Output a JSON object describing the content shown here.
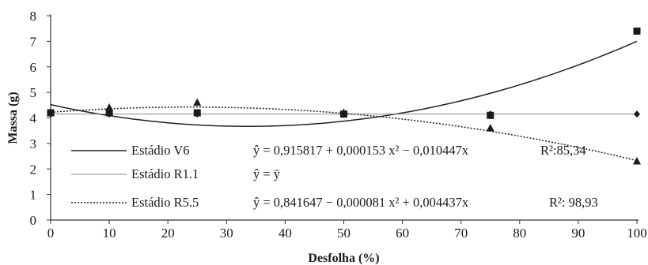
{
  "chart_data": {
    "type": "line",
    "xlabel": "Desfolha (%)",
    "ylabel": "Massa (g)",
    "xlim": [
      0,
      100
    ],
    "ylim": [
      0,
      8
    ],
    "xticks": [
      "0",
      "10",
      "20",
      "30",
      "40",
      "50",
      "60",
      "70",
      "80",
      "90",
      "100"
    ],
    "yticks": [
      "0",
      "1",
      "2",
      "3",
      "4",
      "5",
      "6",
      "7",
      "8"
    ],
    "grid": false,
    "legend_position": "lower-left",
    "series": [
      {
        "name": "Estádio V6",
        "marker": "square",
        "line_style": "solid",
        "points": [
          {
            "x": 0,
            "y": 4.2
          },
          {
            "x": 10,
            "y": 4.2
          },
          {
            "x": 25,
            "y": 4.2
          },
          {
            "x": 50,
            "y": 4.15
          },
          {
            "x": 75,
            "y": 4.1
          },
          {
            "x": 100,
            "y": 7.4
          }
        ],
        "fit": {
          "b0": 4.52,
          "b1": -0.0507,
          "b2": 0.000755
        },
        "equation": "ŷ =  0,915817 + 0,000153 x² − 0,010447x",
        "r2": "R²:85,34"
      },
      {
        "name": "Estádio R1.1",
        "marker": "diamond",
        "line_style": "thin",
        "points": [
          {
            "x": 0,
            "y": 4.15
          },
          {
            "x": 10,
            "y": 4.15
          },
          {
            "x": 25,
            "y": 4.15
          },
          {
            "x": 50,
            "y": 4.15
          },
          {
            "x": 75,
            "y": 4.15
          },
          {
            "x": 100,
            "y": 4.15
          }
        ],
        "fit": {
          "b0": 4.15,
          "b1": 0,
          "b2": 0
        },
        "equation": "ŷ =  ȳ",
        "r2": ""
      },
      {
        "name": "Estádio R5.5",
        "marker": "triangle",
        "line_style": "dotted",
        "points": [
          {
            "x": 0,
            "y": 4.2
          },
          {
            "x": 10,
            "y": 4.4
          },
          {
            "x": 25,
            "y": 4.6
          },
          {
            "x": 50,
            "y": 4.2
          },
          {
            "x": 75,
            "y": 3.6
          },
          {
            "x": 100,
            "y": 2.3
          }
        ],
        "fit": {
          "b0": 4.22,
          "b1": 0.0172,
          "b2": -0.000361
        },
        "equation": "ŷ =  0,841647 − 0,000081 x² + 0,004437x",
        "r2": "R²: 98,93"
      }
    ]
  }
}
